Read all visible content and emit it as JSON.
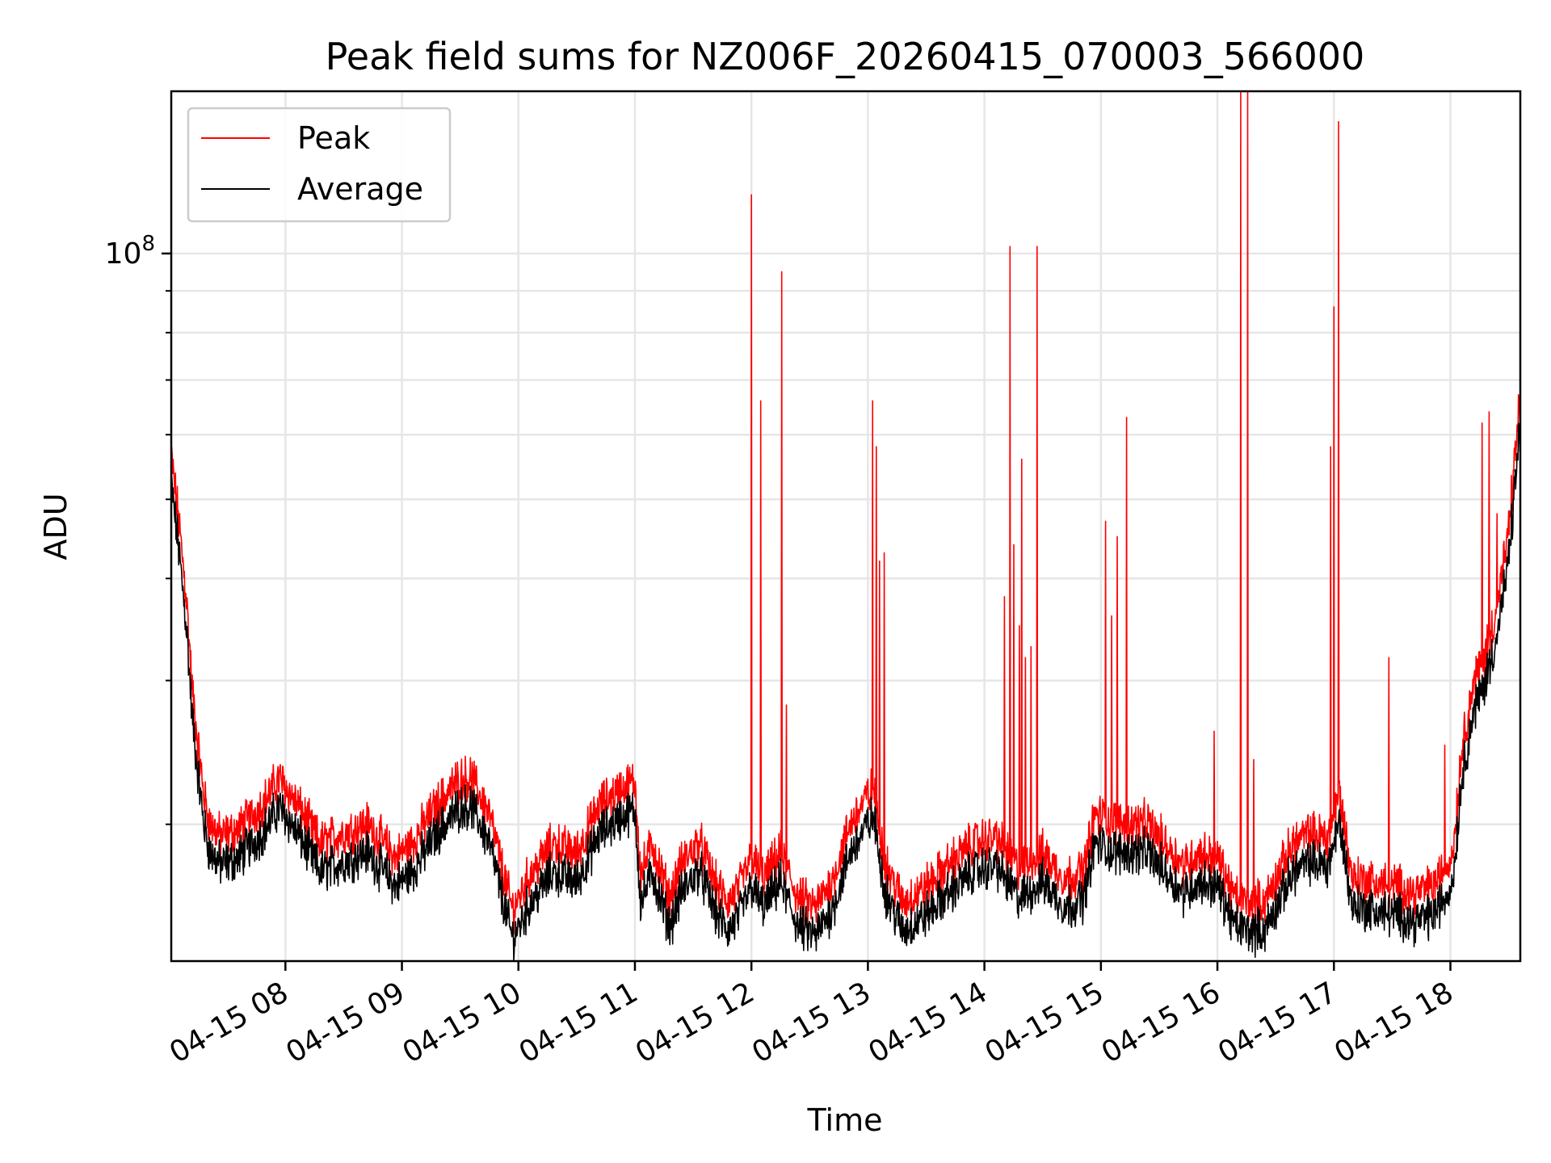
{
  "chart_data": {
    "type": "line",
    "title": "Peak field sums for NZ006F_20260415_070003_566000",
    "xlabel": "Time",
    "ylabel": "ADU",
    "yscale": "log",
    "grid": true,
    "legend_position": "upper-left",
    "xlim": [
      7.02,
      18.6
    ],
    "ylim": [
      13600000,
      158000000
    ],
    "x_ticks": [
      {
        "value": 8,
        "label": "04-15 08"
      },
      {
        "value": 9,
        "label": "04-15 09"
      },
      {
        "value": 10,
        "label": "04-15 10"
      },
      {
        "value": 11,
        "label": "04-15 11"
      },
      {
        "value": 12,
        "label": "04-15 12"
      },
      {
        "value": 13,
        "label": "04-15 13"
      },
      {
        "value": 14,
        "label": "04-15 14"
      },
      {
        "value": 15,
        "label": "04-15 15"
      },
      {
        "value": 16,
        "label": "04-15 16"
      },
      {
        "value": 17,
        "label": "04-15 17"
      },
      {
        "value": 18,
        "label": "04-15 18"
      }
    ],
    "y_ticks": [
      {
        "value": 100000000,
        "base": "10",
        "exponent": "8"
      }
    ],
    "y_minor_ticks": [
      20000000,
      30000000,
      40000000,
      50000000,
      60000000,
      70000000,
      80000000,
      90000000
    ],
    "series": [
      {
        "name": "Peak",
        "color": "#ff0000",
        "baseline_offset": 0.035,
        "spikes": [
          [
            12.0,
            118000000
          ],
          [
            12.08,
            66000000
          ],
          [
            12.26,
            95000000
          ],
          [
            12.3,
            28000000
          ],
          [
            13.04,
            66000000
          ],
          [
            13.07,
            58000000
          ],
          [
            13.1,
            42000000
          ],
          [
            13.14,
            43000000
          ],
          [
            14.17,
            38000000
          ],
          [
            14.22,
            102000000
          ],
          [
            14.25,
            44000000
          ],
          [
            14.3,
            35000000
          ],
          [
            14.32,
            56000000
          ],
          [
            14.35,
            32000000
          ],
          [
            14.4,
            33000000
          ],
          [
            14.45,
            102000000
          ],
          [
            15.04,
            47000000
          ],
          [
            15.09,
            36000000
          ],
          [
            15.14,
            45000000
          ],
          [
            15.22,
            63000000
          ],
          [
            15.97,
            26000000
          ],
          [
            16.2,
            160000000
          ],
          [
            16.26,
            160000000
          ],
          [
            16.31,
            24000000
          ],
          [
            16.97,
            58000000
          ],
          [
            17.0,
            86000000
          ],
          [
            17.04,
            145000000
          ],
          [
            17.47,
            32000000
          ],
          [
            17.95,
            25000000
          ],
          [
            18.27,
            62000000
          ],
          [
            18.33,
            64000000
          ],
          [
            18.4,
            48000000
          ]
        ]
      },
      {
        "name": "Average",
        "color": "#000000",
        "baseline_offset": 0.0,
        "spikes": []
      }
    ],
    "average_profile": {
      "x": [
        7.02,
        7.08,
        7.15,
        7.2,
        7.25,
        7.3,
        7.35,
        7.45,
        7.6,
        7.8,
        7.95,
        8.05,
        8.15,
        8.3,
        8.5,
        8.7,
        8.95,
        9.1,
        9.3,
        9.5,
        9.6,
        9.75,
        9.85,
        9.95,
        10.1,
        10.3,
        10.5,
        10.7,
        10.9,
        11.0,
        11.05,
        11.15,
        11.2,
        11.3,
        11.4,
        11.55,
        11.7,
        11.8,
        11.9,
        12.0,
        12.1,
        12.25,
        12.4,
        12.55,
        12.7,
        12.85,
        13.0,
        13.05,
        13.15,
        13.3,
        13.5,
        13.7,
        13.9,
        14.1,
        14.3,
        14.5,
        14.7,
        14.85,
        14.95,
        15.1,
        15.25,
        15.4,
        15.55,
        15.7,
        15.85,
        16.0,
        16.15,
        16.3,
        16.4,
        16.5,
        16.65,
        16.8,
        16.95,
        17.05,
        17.15,
        17.25,
        17.4,
        17.55,
        17.7,
        17.85,
        17.95,
        18.02,
        18.1,
        18.2,
        18.3,
        18.4,
        18.5,
        18.6
      ],
      "y": [
        52000000,
        44000000,
        35000000,
        27000000,
        23000000,
        20000000,
        18500000,
        17800000,
        18200000,
        19500000,
        21000000,
        20000000,
        19000000,
        17500000,
        18000000,
        18500000,
        16800000,
        17600000,
        19500000,
        21000000,
        21000000,
        19000000,
        16500000,
        14500000,
        16000000,
        17500000,
        17000000,
        19500000,
        20500000,
        20800000,
        16000000,
        17500000,
        16500000,
        15000000,
        16500000,
        17600000,
        15500000,
        14800000,
        15500000,
        16800000,
        15800000,
        17000000,
        15000000,
        14600000,
        15800000,
        18500000,
        20000000,
        20400000,
        16500000,
        14800000,
        15500000,
        16500000,
        17500000,
        17800000,
        16200000,
        17000000,
        15800000,
        16200000,
        19000000,
        18500000,
        18500000,
        18500000,
        17500000,
        16500000,
        17000000,
        16800000,
        15000000,
        14800000,
        14800000,
        15800000,
        17500000,
        18000000,
        17800000,
        20200000,
        16000000,
        15800000,
        15600000,
        15500000,
        15200000,
        15500000,
        16200000,
        17000000,
        23000000,
        27500000,
        30000000,
        34000000,
        42000000,
        62000000
      ]
    },
    "noise_amplitude": 0.022,
    "sample_step_hours": 0.004
  }
}
